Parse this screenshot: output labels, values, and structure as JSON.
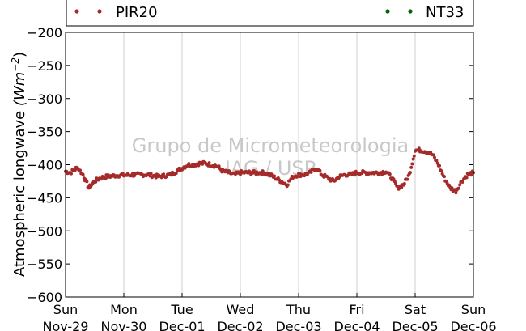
{
  "chart_data": {
    "type": "scatter",
    "ylabel": "Atmospheric longwave (Wm⁻²)",
    "ylabel_text": "Atmospheric longwave ",
    "ylabel_unit": "(Wm",
    "ylabel_exp": "−2",
    "ylabel_close": ")",
    "ylim": [
      -600,
      -200
    ],
    "y_ticks": [
      -200,
      -250,
      -300,
      -350,
      -400,
      -450,
      -500,
      -550,
      -600
    ],
    "y_tick_labels": [
      "−200",
      "−250",
      "−300",
      "−350",
      "−400",
      "−450",
      "−500",
      "−550",
      "−600"
    ],
    "xlim": [
      0,
      7
    ],
    "x_tick_labels": [
      {
        "day": "Sun",
        "date": "Nov-29"
      },
      {
        "day": "Mon",
        "date": "Nov-30"
      },
      {
        "day": "Tue",
        "date": "Dec-01"
      },
      {
        "day": "Wed",
        "date": "Dec-02"
      },
      {
        "day": "Thu",
        "date": "Dec-03"
      },
      {
        "day": "Fri",
        "date": "Dec-04"
      },
      {
        "day": "Sat",
        "date": "Dec-05"
      },
      {
        "day": "Sun",
        "date": "Dec-06"
      }
    ],
    "grid": "vertical",
    "legend_placement": "top",
    "watermark": [
      "Grupo de Micrometeorologia",
      "IAG / USP"
    ],
    "series": [
      {
        "name": "PIR20",
        "color": "#a52a2a",
        "x": [
          0,
          0.08,
          0.15,
          0.2,
          0.3,
          0.4,
          0.5,
          0.6,
          0.7,
          0.8,
          0.9,
          1.0,
          1.2,
          1.4,
          1.6,
          1.8,
          1.9,
          2.0,
          2.1,
          2.2,
          2.3,
          2.4,
          2.5,
          2.6,
          2.7,
          2.8,
          2.9,
          3.0,
          3.2,
          3.4,
          3.5,
          3.6,
          3.7,
          3.8,
          3.9,
          4.0,
          4.1,
          4.2,
          4.3,
          4.4,
          4.5,
          4.6,
          4.7,
          4.8,
          4.9,
          5.0,
          5.2,
          5.4,
          5.5,
          5.6,
          5.7,
          5.8,
          5.9,
          6.0,
          6.1,
          6.2,
          6.3,
          6.4,
          6.5,
          6.6,
          6.7,
          6.8,
          6.9,
          7.0
        ],
        "y": [
          -410,
          -412,
          -408,
          -404,
          -415,
          -435,
          -425,
          -420,
          -418,
          -417,
          -416,
          -416,
          -415,
          -415,
          -418,
          -415,
          -410,
          -405,
          -400,
          -400,
          -398,
          -398,
          -400,
          -402,
          -410,
          -412,
          -415,
          -412,
          -412,
          -412,
          -415,
          -420,
          -425,
          -430,
          -418,
          -415,
          -415,
          -412,
          -405,
          -415,
          -420,
          -425,
          -418,
          -415,
          -415,
          -412,
          -412,
          -412,
          -410,
          -420,
          -435,
          -430,
          -415,
          -378,
          -378,
          -380,
          -385,
          -400,
          -420,
          -435,
          -440,
          -425,
          -415,
          -412
        ],
        "labels": [
          "PIR20"
        ]
      },
      {
        "name": "NT33",
        "color": "#006400",
        "x": [],
        "y": [],
        "labels": [
          "NT33"
        ]
      }
    ]
  }
}
